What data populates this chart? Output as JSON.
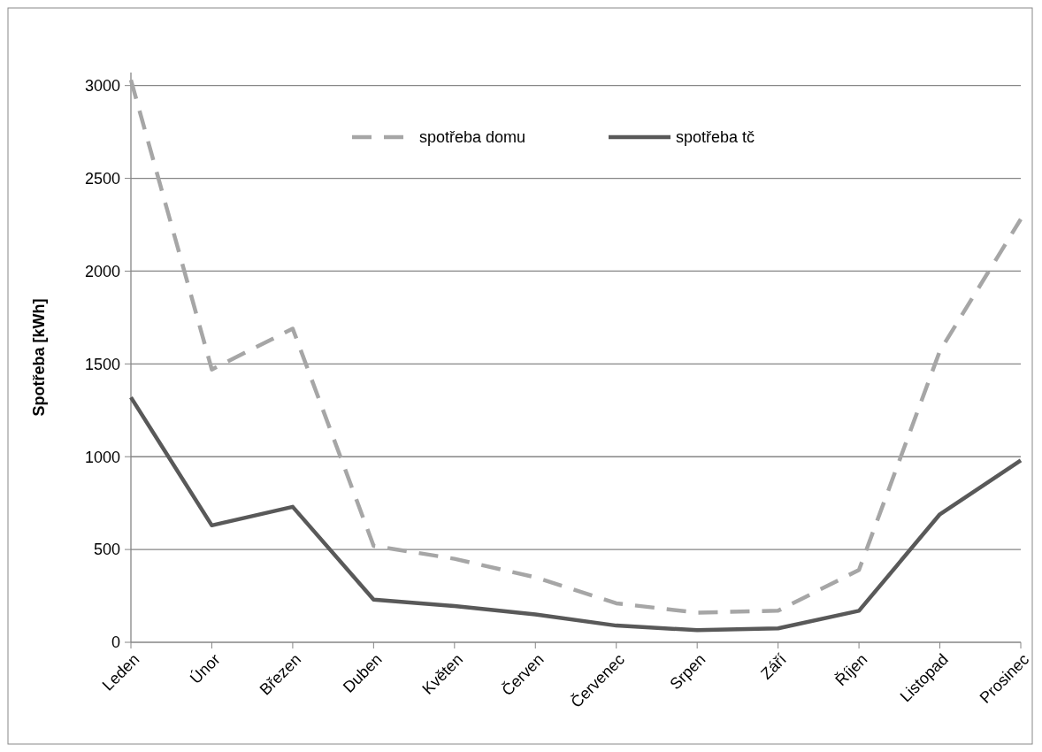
{
  "chart_data": {
    "type": "line",
    "ylabel": "Spotřeba [kWh]",
    "categories": [
      "Leden",
      "Únor",
      "Březen",
      "Duben",
      "Květen",
      "Červen",
      "Červenec",
      "Srpen",
      "Září",
      "Říjen",
      "Listopad",
      "Prosinec"
    ],
    "series": [
      {
        "name": "spotřeba domu",
        "color": "#a6a6a6",
        "line_style": "dashed",
        "values": [
          3030,
          1470,
          1690,
          520,
          450,
          350,
          210,
          160,
          170,
          390,
          1570,
          2280
        ]
      },
      {
        "name": "spotřeba tč",
        "color": "#595959",
        "line_style": "solid",
        "values": [
          1320,
          630,
          730,
          230,
          195,
          150,
          90,
          65,
          75,
          170,
          690,
          980
        ]
      }
    ],
    "ylim": [
      0,
      3070
    ],
    "yticks": [
      0,
      500,
      1000,
      1500,
      2000,
      2500,
      3000
    ],
    "grid": "y",
    "legend": "top",
    "marker": "none"
  }
}
